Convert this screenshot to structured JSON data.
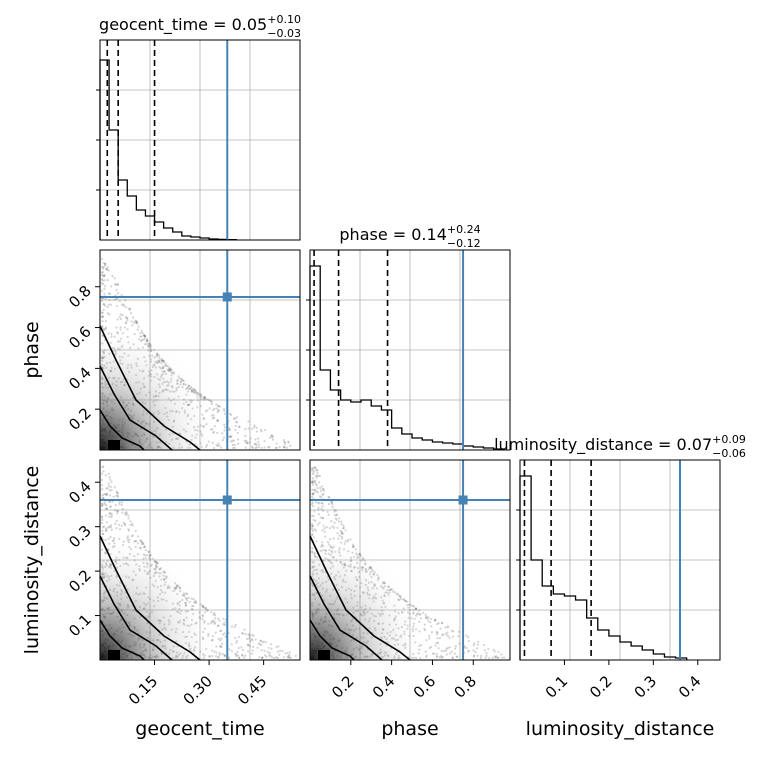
{
  "colors": {
    "truth": "#4682b4",
    "hist": "#000000",
    "quantile": "#000000",
    "grid": "#b0b0b0",
    "contour": "#000000"
  },
  "chart_data": [
    {
      "type": "histogram",
      "param": "geocent_time",
      "title_main": "geocent_time = 0.05",
      "title_sup": "+0.10",
      "title_sub": "−0.03",
      "xlim": [
        0.0,
        0.55
      ],
      "ylim": [
        0,
        1.0
      ],
      "bins": [
        0.0,
        0.025,
        0.05,
        0.075,
        0.1,
        0.125,
        0.15,
        0.175,
        0.2,
        0.225,
        0.25,
        0.275,
        0.3,
        0.325,
        0.35,
        0.375
      ],
      "heights": [
        0.9,
        0.55,
        0.3,
        0.22,
        0.15,
        0.12,
        0.09,
        0.06,
        0.04,
        0.02,
        0.015,
        0.01,
        0.005,
        0.003,
        0.002
      ],
      "quantiles": [
        0.02,
        0.05,
        0.15
      ],
      "truth": 0.35
    },
    {
      "type": "scatter-contour",
      "xparam": "geocent_time",
      "yparam": "phase",
      "ylabel": "phase",
      "xlim": [
        0.0,
        0.55
      ],
      "ylim": [
        0.0,
        0.98
      ],
      "yticks": [
        "0.2",
        "0.4",
        "0.6",
        "0.8"
      ],
      "truth": [
        0.35,
        0.75
      ]
    },
    {
      "type": "histogram",
      "param": "phase",
      "title_main": "phase = 0.14",
      "title_sup": "+0.24",
      "title_sub": "−0.12",
      "xlim": [
        0.0,
        0.98
      ],
      "ylim": [
        0,
        1.0
      ],
      "bins": [
        0.0,
        0.05,
        0.1,
        0.15,
        0.2,
        0.25,
        0.3,
        0.35,
        0.4,
        0.45,
        0.5,
        0.55,
        0.6,
        0.65,
        0.7,
        0.75,
        0.8,
        0.85,
        0.9,
        0.95
      ],
      "heights": [
        0.92,
        0.4,
        0.3,
        0.25,
        0.24,
        0.25,
        0.22,
        0.2,
        0.11,
        0.08,
        0.06,
        0.05,
        0.04,
        0.035,
        0.03,
        0.02,
        0.015,
        0.01,
        0.005
      ],
      "quantiles": [
        0.02,
        0.14,
        0.38
      ],
      "truth": 0.75
    },
    {
      "type": "scatter-contour",
      "xparam": "geocent_time",
      "yparam": "luminosity_distance",
      "xlabel": "geocent_time",
      "ylabel": "luminosity_distance",
      "xlim": [
        0.0,
        0.55
      ],
      "ylim": [
        0.0,
        0.45
      ],
      "xticks": [
        "0.15",
        "0.30",
        "0.45"
      ],
      "yticks": [
        "0.1",
        "0.2",
        "0.3",
        "0.4"
      ],
      "truth": [
        0.35,
        0.36
      ]
    },
    {
      "type": "scatter-contour",
      "xparam": "phase",
      "yparam": "luminosity_distance",
      "xlabel": "phase",
      "xlim": [
        0.0,
        0.98
      ],
      "ylim": [
        0.0,
        0.45
      ],
      "xticks": [
        "0.2",
        "0.4",
        "0.6",
        "0.8"
      ],
      "truth": [
        0.75,
        0.36
      ]
    },
    {
      "type": "histogram",
      "param": "luminosity_distance",
      "title_main": "luminosity_distance = 0.07",
      "title_sup": "+0.09",
      "title_sub": "−0.06",
      "xlabel": "luminosity_distance",
      "xlim": [
        0.0,
        0.45
      ],
      "ylim": [
        0,
        1.0
      ],
      "xticks": [
        "0.1",
        "0.2",
        "0.3",
        "0.4"
      ],
      "bins": [
        0.0,
        0.025,
        0.05,
        0.075,
        0.1,
        0.125,
        0.15,
        0.175,
        0.2,
        0.225,
        0.25,
        0.275,
        0.3,
        0.325,
        0.35,
        0.375
      ],
      "heights": [
        0.92,
        0.5,
        0.37,
        0.33,
        0.32,
        0.3,
        0.21,
        0.15,
        0.12,
        0.09,
        0.07,
        0.05,
        0.03,
        0.015,
        0.01
      ],
      "quantiles": [
        0.01,
        0.07,
        0.16
      ],
      "truth": 0.36
    }
  ]
}
